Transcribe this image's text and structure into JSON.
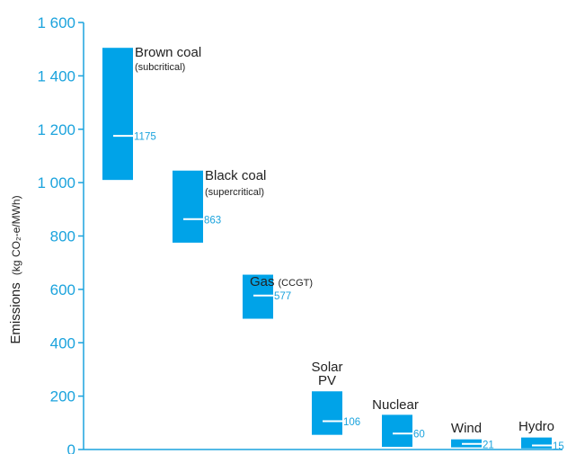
{
  "chart_data": {
    "type": "bar",
    "subtype": "floating-range",
    "ylabel_main": "Emissions",
    "ylabel_unit": "(kg CO₂-e/MWh)",
    "ylim": [
      0,
      1600
    ],
    "yticks": [
      0,
      200,
      400,
      600,
      800,
      1000,
      1200,
      1400,
      1600
    ],
    "ytick_labels": [
      "0",
      "200",
      "400",
      "600",
      "800",
      "1 000",
      "1 200",
      "1 400",
      "1 600"
    ],
    "grid": false,
    "colors": {
      "bar": "#00a3e8",
      "axis": "#1ba3dd",
      "text": "#222222"
    },
    "categories": [
      {
        "name": "Brown coal",
        "sub": "(subcritical)",
        "low": 1010,
        "high": 1505,
        "mid": 1175
      },
      {
        "name": "Black coal",
        "sub": "(supercritical)",
        "low": 775,
        "high": 1045,
        "mid": 863
      },
      {
        "name": "Gas",
        "sub": "(CCGT)",
        "low": 490,
        "high": 655,
        "mid": 577
      },
      {
        "name": "Solar",
        "name2": "PV",
        "sub": "",
        "low": 55,
        "high": 218,
        "mid": 106
      },
      {
        "name": "Nuclear",
        "sub": "",
        "low": 10,
        "high": 130,
        "mid": 60
      },
      {
        "name": "Wind",
        "sub": "",
        "low": 8,
        "high": 38,
        "mid": 21
      },
      {
        "name": "Hydro",
        "sub": "",
        "low": 4,
        "high": 45,
        "mid": 15
      }
    ]
  }
}
